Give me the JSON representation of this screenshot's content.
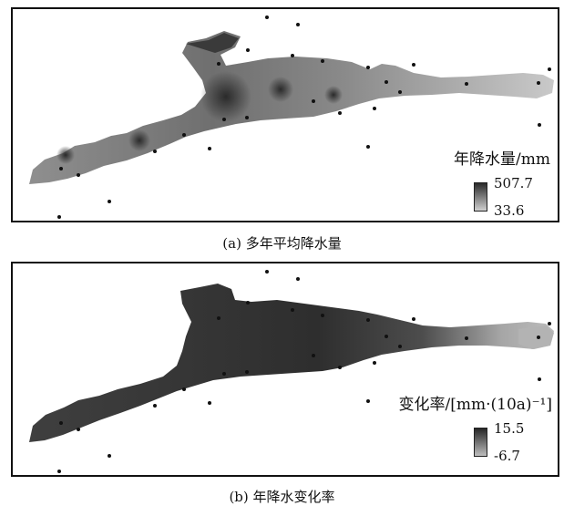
{
  "panels": [
    {
      "id": "a",
      "legend_title": "年降水量/mm",
      "legend_max": "507.7",
      "legend_min": "33.6",
      "caption": "(a) 多年平均降水量",
      "colors": {
        "dark": "#2a2a2a",
        "mid": "#8a8a8a",
        "light": "#cfcfcf"
      }
    },
    {
      "id": "b",
      "legend_title": "变化率/[mm·(10a)⁻¹]",
      "legend_max": "15.5",
      "legend_min": "-6.7",
      "caption": "(b) 年降水变化率",
      "colors": {
        "dark": "#262626",
        "mid": "#3c3c3c",
        "light": "#bdbdbd"
      }
    }
  ]
}
